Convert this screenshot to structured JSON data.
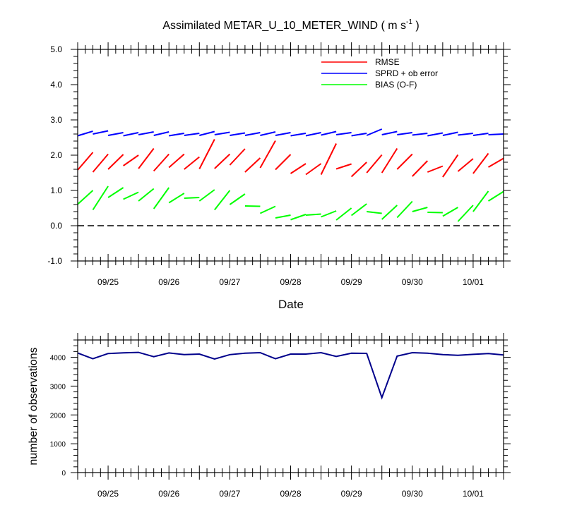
{
  "chart_data": [
    {
      "type": "line",
      "title_main": "Assimilated METAR_U_10_METER_WIND ( m s",
      "title_sup": "-1",
      "title_tail": " )",
      "xlabel": "Date",
      "ylim": [
        -1.0,
        5.0
      ],
      "yticks": [
        "-1.0",
        "0.0",
        "1.0",
        "2.0",
        "3.0",
        "4.0",
        "5.0"
      ],
      "xlim": [
        0,
        14
      ],
      "xticks": [
        {
          "at": 1,
          "label": "09/25"
        },
        {
          "at": 3,
          "label": "09/26"
        },
        {
          "at": 5,
          "label": "09/27"
        },
        {
          "at": 7,
          "label": "09/28"
        },
        {
          "at": 9,
          "label": "09/29"
        },
        {
          "at": 11,
          "label": "09/30"
        },
        {
          "at": 13,
          "label": "10/01"
        }
      ],
      "reference_line": {
        "y": 0.0,
        "style": "dashed"
      },
      "legend_position": "top-right",
      "series": [
        {
          "name": "RMSE",
          "color": "#ff0000",
          "segments": [
            [
              [
                0.0,
                1.58
              ],
              [
                0.5,
                2.08
              ]
            ],
            [
              [
                0.5,
                1.52
              ],
              [
                1.0,
                2.03
              ]
            ],
            [
              [
                1.0,
                1.6
              ],
              [
                1.5,
                2.02
              ]
            ],
            [
              [
                1.5,
                1.7
              ],
              [
                2.0,
                2.0
              ]
            ],
            [
              [
                2.0,
                1.62
              ],
              [
                2.5,
                2.19
              ]
            ],
            [
              [
                2.5,
                1.55
              ],
              [
                3.0,
                2.03
              ]
            ],
            [
              [
                3.0,
                1.65
              ],
              [
                3.5,
                2.03
              ]
            ],
            [
              [
                3.5,
                1.6
              ],
              [
                4.0,
                1.95
              ]
            ],
            [
              [
                4.0,
                1.61
              ],
              [
                4.5,
                2.45
              ]
            ],
            [
              [
                4.5,
                1.62
              ],
              [
                5.0,
                2.03
              ]
            ],
            [
              [
                5.0,
                1.72
              ],
              [
                5.5,
                2.18
              ]
            ],
            [
              [
                5.5,
                1.52
              ],
              [
                6.0,
                1.92
              ]
            ],
            [
              [
                6.0,
                1.64
              ],
              [
                6.5,
                2.41
              ]
            ],
            [
              [
                6.5,
                1.59
              ],
              [
                7.0,
                2.02
              ]
            ],
            [
              [
                7.0,
                1.48
              ],
              [
                7.5,
                1.76
              ]
            ],
            [
              [
                7.5,
                1.45
              ],
              [
                8.0,
                1.76
              ]
            ],
            [
              [
                8.0,
                1.45
              ],
              [
                8.5,
                2.33
              ]
            ],
            [
              [
                8.5,
                1.61
              ],
              [
                9.0,
                1.75
              ]
            ],
            [
              [
                9.0,
                1.39
              ],
              [
                9.5,
                1.8
              ]
            ],
            [
              [
                9.5,
                1.5
              ],
              [
                10.0,
                2.01
              ]
            ],
            [
              [
                10.0,
                1.5
              ],
              [
                10.5,
                2.19
              ]
            ],
            [
              [
                10.5,
                1.6
              ],
              [
                11.0,
                2.03
              ]
            ],
            [
              [
                11.0,
                1.4
              ],
              [
                11.5,
                1.84
              ]
            ],
            [
              [
                11.5,
                1.52
              ],
              [
                12.0,
                1.69
              ]
            ],
            [
              [
                12.0,
                1.38
              ],
              [
                12.5,
                2.01
              ]
            ],
            [
              [
                12.5,
                1.54
              ],
              [
                13.0,
                1.9
              ]
            ],
            [
              [
                13.0,
                1.48
              ],
              [
                13.5,
                2.05
              ]
            ],
            [
              [
                13.5,
                1.66
              ],
              [
                14.0,
                1.91
              ]
            ]
          ]
        },
        {
          "name": "SPRD + ob error",
          "color": "#0000ff",
          "segments": [
            [
              [
                0.0,
                2.55
              ],
              [
                0.5,
                2.68
              ]
            ],
            [
              [
                0.5,
                2.6
              ],
              [
                1.0,
                2.69
              ]
            ],
            [
              [
                1.0,
                2.56
              ],
              [
                1.5,
                2.64
              ]
            ],
            [
              [
                1.5,
                2.55
              ],
              [
                2.0,
                2.64
              ]
            ],
            [
              [
                2.0,
                2.58
              ],
              [
                2.5,
                2.66
              ]
            ],
            [
              [
                2.5,
                2.56
              ],
              [
                3.0,
                2.66
              ]
            ],
            [
              [
                3.0,
                2.55
              ],
              [
                3.5,
                2.62
              ]
            ],
            [
              [
                3.5,
                2.56
              ],
              [
                4.0,
                2.62
              ]
            ],
            [
              [
                4.0,
                2.56
              ],
              [
                4.5,
                2.67
              ]
            ],
            [
              [
                4.5,
                2.58
              ],
              [
                5.0,
                2.65
              ]
            ],
            [
              [
                5.0,
                2.56
              ],
              [
                5.5,
                2.63
              ]
            ],
            [
              [
                5.5,
                2.56
              ],
              [
                6.0,
                2.64
              ]
            ],
            [
              [
                6.0,
                2.56
              ],
              [
                6.5,
                2.66
              ]
            ],
            [
              [
                6.5,
                2.56
              ],
              [
                7.0,
                2.64
              ]
            ],
            [
              [
                7.0,
                2.55
              ],
              [
                7.5,
                2.62
              ]
            ],
            [
              [
                7.5,
                2.55
              ],
              [
                8.0,
                2.64
              ]
            ],
            [
              [
                8.0,
                2.57
              ],
              [
                8.5,
                2.67
              ]
            ],
            [
              [
                8.5,
                2.58
              ],
              [
                9.0,
                2.64
              ]
            ],
            [
              [
                9.0,
                2.55
              ],
              [
                9.5,
                2.62
              ]
            ],
            [
              [
                9.5,
                2.56
              ],
              [
                10.0,
                2.74
              ]
            ],
            [
              [
                10.0,
                2.58
              ],
              [
                10.5,
                2.67
              ]
            ],
            [
              [
                10.5,
                2.58
              ],
              [
                11.0,
                2.64
              ]
            ],
            [
              [
                11.0,
                2.57
              ],
              [
                11.5,
                2.62
              ]
            ],
            [
              [
                11.5,
                2.55
              ],
              [
                12.0,
                2.63
              ]
            ],
            [
              [
                12.0,
                2.56
              ],
              [
                12.5,
                2.65
              ]
            ],
            [
              [
                12.5,
                2.57
              ],
              [
                13.0,
                2.62
              ]
            ],
            [
              [
                13.0,
                2.56
              ],
              [
                13.5,
                2.62
              ]
            ],
            [
              [
                13.5,
                2.58
              ],
              [
                14.0,
                2.6
              ]
            ]
          ]
        },
        {
          "name": "BIAS (O-F)",
          "color": "#00ff00",
          "segments": [
            [
              [
                0.0,
                0.61
              ],
              [
                0.5,
                1.0
              ]
            ],
            [
              [
                0.5,
                0.45
              ],
              [
                1.0,
                1.12
              ]
            ],
            [
              [
                1.0,
                0.8
              ],
              [
                1.5,
                1.08
              ]
            ],
            [
              [
                1.5,
                0.75
              ],
              [
                2.0,
                0.95
              ]
            ],
            [
              [
                2.0,
                0.7
              ],
              [
                2.5,
                1.05
              ]
            ],
            [
              [
                2.5,
                0.48
              ],
              [
                3.0,
                1.08
              ]
            ],
            [
              [
                3.0,
                0.65
              ],
              [
                3.5,
                0.92
              ]
            ],
            [
              [
                3.5,
                0.78
              ],
              [
                4.0,
                0.8
              ]
            ],
            [
              [
                4.0,
                0.7
              ],
              [
                4.5,
                1.02
              ]
            ],
            [
              [
                4.5,
                0.45
              ],
              [
                5.0,
                1.0
              ]
            ],
            [
              [
                5.0,
                0.6
              ],
              [
                5.5,
                0.9
              ]
            ],
            [
              [
                5.5,
                0.56
              ],
              [
                6.0,
                0.55
              ]
            ],
            [
              [
                6.0,
                0.35
              ],
              [
                6.5,
                0.55
              ]
            ],
            [
              [
                6.5,
                0.22
              ],
              [
                7.0,
                0.3
              ]
            ],
            [
              [
                7.0,
                0.17
              ],
              [
                7.5,
                0.32
              ]
            ],
            [
              [
                7.5,
                0.3
              ],
              [
                8.0,
                0.33
              ]
            ],
            [
              [
                8.0,
                0.25
              ],
              [
                8.5,
                0.42
              ]
            ],
            [
              [
                8.5,
                0.16
              ],
              [
                9.0,
                0.5
              ]
            ],
            [
              [
                9.0,
                0.29
              ],
              [
                9.5,
                0.62
              ]
            ],
            [
              [
                9.5,
                0.4
              ],
              [
                10.0,
                0.35
              ]
            ],
            [
              [
                10.0,
                0.18
              ],
              [
                10.5,
                0.58
              ]
            ],
            [
              [
                10.5,
                0.23
              ],
              [
                11.0,
                0.69
              ]
            ],
            [
              [
                11.0,
                0.4
              ],
              [
                11.5,
                0.52
              ]
            ],
            [
              [
                11.5,
                0.38
              ],
              [
                12.0,
                0.37
              ]
            ],
            [
              [
                12.0,
                0.27
              ],
              [
                12.5,
                0.52
              ]
            ],
            [
              [
                12.5,
                0.12
              ],
              [
                13.0,
                0.58
              ]
            ],
            [
              [
                13.0,
                0.4
              ],
              [
                13.5,
                0.98
              ]
            ],
            [
              [
                13.5,
                0.7
              ],
              [
                14.0,
                0.97
              ]
            ]
          ]
        }
      ]
    },
    {
      "type": "line",
      "ylabel": "number of observations",
      "ylim": [
        0,
        4600
      ],
      "yticks": [
        "0",
        "1000",
        "2000",
        "3000",
        "4000"
      ],
      "xlim": [
        0,
        14
      ],
      "xticks": [
        {
          "at": 1,
          "label": "09/25"
        },
        {
          "at": 3,
          "label": "09/26"
        },
        {
          "at": 5,
          "label": "09/27"
        },
        {
          "at": 7,
          "label": "09/28"
        },
        {
          "at": 9,
          "label": "09/29"
        },
        {
          "at": 11,
          "label": "09/30"
        },
        {
          "at": 13,
          "label": "10/01"
        }
      ],
      "series": [
        {
          "color": "#00008b",
          "points": [
            [
              0.0,
              4150
            ],
            [
              0.5,
              3950
            ],
            [
              1.0,
              4130
            ],
            [
              1.5,
              4155
            ],
            [
              2.0,
              4170
            ],
            [
              2.5,
              4020
            ],
            [
              3.0,
              4150
            ],
            [
              3.5,
              4090
            ],
            [
              4.0,
              4110
            ],
            [
              4.5,
              3940
            ],
            [
              5.0,
              4090
            ],
            [
              5.5,
              4140
            ],
            [
              6.0,
              4160
            ],
            [
              6.5,
              3950
            ],
            [
              7.0,
              4110
            ],
            [
              7.5,
              4110
            ],
            [
              8.0,
              4160
            ],
            [
              8.5,
              4030
            ],
            [
              9.0,
              4140
            ],
            [
              9.5,
              4135
            ],
            [
              10.0,
              2600
            ],
            [
              10.5,
              4040
            ],
            [
              11.0,
              4160
            ],
            [
              11.5,
              4140
            ],
            [
              12.0,
              4090
            ],
            [
              12.5,
              4070
            ],
            [
              13.0,
              4100
            ],
            [
              13.5,
              4130
            ],
            [
              14.0,
              4080
            ]
          ]
        }
      ]
    }
  ]
}
